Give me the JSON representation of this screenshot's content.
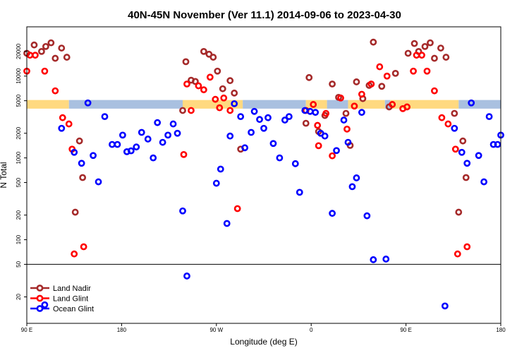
{
  "chart_data": {
    "type": "scatter",
    "title": "40N-45N November (Ver 11.1)   2014-09-06 to 2023-04-30",
    "xlabel": "Longitude (deg E)",
    "ylabel": "N Total",
    "y_scale": "log",
    "xlim": [
      90,
      540
    ],
    "ylim": [
      9.5,
      40000
    ],
    "x_ticks": [
      {
        "value": 90,
        "label": "90 E"
      },
      {
        "value": 180,
        "label": "180"
      },
      {
        "value": 270,
        "label": "90 W"
      },
      {
        "value": 360,
        "label": "0"
      },
      {
        "value": 450,
        "label": "90 E"
      },
      {
        "value": 540,
        "label": "180"
      }
    ],
    "y_ticks": [
      {
        "value": 20,
        "label": "20"
      },
      {
        "value": 50,
        "label": "50"
      },
      {
        "value": 100,
        "label": "100"
      },
      {
        "value": 200,
        "label": "200"
      },
      {
        "value": 500,
        "label": "500"
      },
      {
        "value": 1000,
        "label": "1000"
      },
      {
        "value": 2000,
        "label": "2000"
      },
      {
        "value": 5000,
        "label": "5000"
      },
      {
        "value": 10000,
        "label": "10000"
      },
      {
        "value": 20000,
        "label": "20000"
      }
    ],
    "reference_line": 50,
    "coverage_band": {
      "y_range": [
        4000,
        5100
      ],
      "segments": [
        {
          "from": 90,
          "to": 130,
          "color": "#FFD980"
        },
        {
          "from": 130,
          "to": 238,
          "color": "#A9C0E0"
        },
        {
          "from": 238,
          "to": 295,
          "color": "#FFD980"
        },
        {
          "from": 295,
          "to": 355,
          "color": "#A9C0E0"
        },
        {
          "from": 355,
          "to": 375,
          "color": "#FFD980"
        },
        {
          "from": 375,
          "to": 395,
          "color": "#A9C0E0"
        },
        {
          "from": 395,
          "to": 430,
          "color": "#FFD980"
        },
        {
          "from": 430,
          "to": 435,
          "color": "#A9C0E0"
        },
        {
          "from": 435,
          "to": 500,
          "color": "#FFD980"
        },
        {
          "from": 500,
          "to": 540,
          "color": "#A9C0E0"
        }
      ]
    },
    "series": [
      {
        "name": "Land Nadir",
        "color": "#A52A2A",
        "points": [
          [
            90,
            19000
          ],
          [
            97,
            24000
          ],
          [
            104,
            20000
          ],
          [
            108,
            23000
          ],
          [
            113,
            25500
          ],
          [
            117,
            16500
          ],
          [
            123,
            22000
          ],
          [
            128,
            17000
          ],
          [
            136,
            217
          ],
          [
            140,
            1610
          ],
          [
            143,
            575
          ],
          [
            238,
            3800
          ],
          [
            241,
            15000
          ],
          [
            246,
            8900
          ],
          [
            250,
            8600
          ],
          [
            258,
            20000
          ],
          [
            263,
            18500
          ],
          [
            267,
            17000
          ],
          [
            271,
            11500
          ],
          [
            276,
            7000
          ],
          [
            283,
            8800
          ],
          [
            287,
            6200
          ],
          [
            293,
            1280
          ],
          [
            355,
            2650
          ],
          [
            358,
            9600
          ],
          [
            367,
            2100
          ],
          [
            373,
            3300
          ],
          [
            380,
            8000
          ],
          [
            386,
            5500
          ],
          [
            393,
            3500
          ],
          [
            397,
            1420
          ],
          [
            403,
            8500
          ],
          [
            409,
            5300
          ],
          [
            415,
            7700
          ],
          [
            419,
            26000
          ],
          [
            427,
            7500
          ],
          [
            434,
            4200
          ],
          [
            440,
            10800
          ],
          [
            452,
            19000
          ],
          [
            458,
            25000
          ],
          [
            462,
            20000
          ],
          [
            468,
            23000
          ],
          [
            473,
            25500
          ],
          [
            477,
            16500
          ],
          [
            483,
            22000
          ],
          [
            488,
            17000
          ],
          [
            496,
            3500
          ],
          [
            500,
            217
          ],
          [
            504,
            1610
          ],
          [
            507,
            575
          ]
        ]
      },
      {
        "name": "Land Glint",
        "color": "#FF0000",
        "points": [
          [
            90,
            11500
          ],
          [
            93,
            18000
          ],
          [
            98,
            18000
          ],
          [
            107,
            11500
          ],
          [
            117,
            6600
          ],
          [
            124,
            3100
          ],
          [
            130,
            2600
          ],
          [
            133,
            1280
          ],
          [
            135,
            67
          ],
          [
            144,
            82
          ],
          [
            239,
            1100
          ],
          [
            242,
            8000
          ],
          [
            246,
            3800
          ],
          [
            253,
            7600
          ],
          [
            258,
            6800
          ],
          [
            264,
            9700
          ],
          [
            269,
            5200
          ],
          [
            273,
            4100
          ],
          [
            277,
            5400
          ],
          [
            283,
            3800
          ],
          [
            290,
            240
          ],
          [
            355,
            3800
          ],
          [
            362,
            4500
          ],
          [
            366,
            2500
          ],
          [
            367,
            1410
          ],
          [
            374,
            3500
          ],
          [
            380,
            1060
          ],
          [
            388,
            5400
          ],
          [
            394,
            2250
          ],
          [
            401,
            4300
          ],
          [
            408,
            6000
          ],
          [
            417,
            8000
          ],
          [
            425,
            13000
          ],
          [
            432,
            10000
          ],
          [
            437,
            4500
          ],
          [
            447,
            4000
          ],
          [
            451,
            4200
          ],
          [
            457,
            11500
          ],
          [
            460,
            18000
          ],
          [
            465,
            18000
          ],
          [
            470,
            11500
          ],
          [
            477,
            6600
          ],
          [
            484,
            3100
          ],
          [
            490,
            2600
          ],
          [
            497,
            1280
          ],
          [
            499,
            67
          ],
          [
            508,
            82
          ]
        ]
      },
      {
        "name": "Ocean Glint",
        "color": "#0000FF",
        "points": [
          [
            107,
            16
          ],
          [
            123,
            2300
          ],
          [
            135,
            1170
          ],
          [
            142,
            860
          ],
          [
            148,
            4700
          ],
          [
            153,
            1070
          ],
          [
            158,
            510
          ],
          [
            164,
            3200
          ],
          [
            171,
            1460
          ],
          [
            176,
            1460
          ],
          [
            181,
            1900
          ],
          [
            185,
            1190
          ],
          [
            189,
            1220
          ],
          [
            194,
            1360
          ],
          [
            199,
            2050
          ],
          [
            205,
            1700
          ],
          [
            210,
            1000
          ],
          [
            214,
            2700
          ],
          [
            219,
            1550
          ],
          [
            224,
            1900
          ],
          [
            229,
            2600
          ],
          [
            233,
            2000
          ],
          [
            238,
            225
          ],
          [
            242,
            36
          ],
          [
            270,
            490
          ],
          [
            274,
            730
          ],
          [
            280,
            158
          ],
          [
            283,
            1850
          ],
          [
            287,
            4600
          ],
          [
            293,
            3200
          ],
          [
            297,
            1330
          ],
          [
            303,
            2050
          ],
          [
            306,
            3700
          ],
          [
            311,
            2950
          ],
          [
            315,
            2300
          ],
          [
            319,
            3100
          ],
          [
            324,
            1500
          ],
          [
            330,
            1000
          ],
          [
            335,
            2900
          ],
          [
            339,
            3200
          ],
          [
            345,
            850
          ],
          [
            349,
            380
          ],
          [
            354,
            3800
          ],
          [
            359,
            3700
          ],
          [
            364,
            3600
          ],
          [
            369,
            2000
          ],
          [
            373,
            1850
          ],
          [
            380,
            210
          ],
          [
            384,
            1230
          ],
          [
            391,
            2900
          ],
          [
            395,
            1550
          ],
          [
            399,
            445
          ],
          [
            403,
            570
          ],
          [
            408,
            3600
          ],
          [
            413,
            196
          ],
          [
            419,
            57
          ],
          [
            431,
            58
          ],
          [
            487,
            15.5
          ],
          [
            496,
            2300
          ],
          [
            503,
            1170
          ],
          [
            508,
            860
          ],
          [
            512,
            4700
          ],
          [
            519,
            1070
          ],
          [
            524,
            510
          ],
          [
            529,
            3200
          ],
          [
            533,
            1460
          ],
          [
            537,
            1460
          ],
          [
            540,
            1900
          ]
        ]
      }
    ],
    "legend": {
      "position": "bottom-left",
      "entries": [
        {
          "label": "Land Nadir",
          "color": "#A52A2A"
        },
        {
          "label": "Land Glint",
          "color": "#FF0000"
        },
        {
          "label": "Ocean Glint",
          "color": "#0000FF"
        }
      ]
    }
  }
}
